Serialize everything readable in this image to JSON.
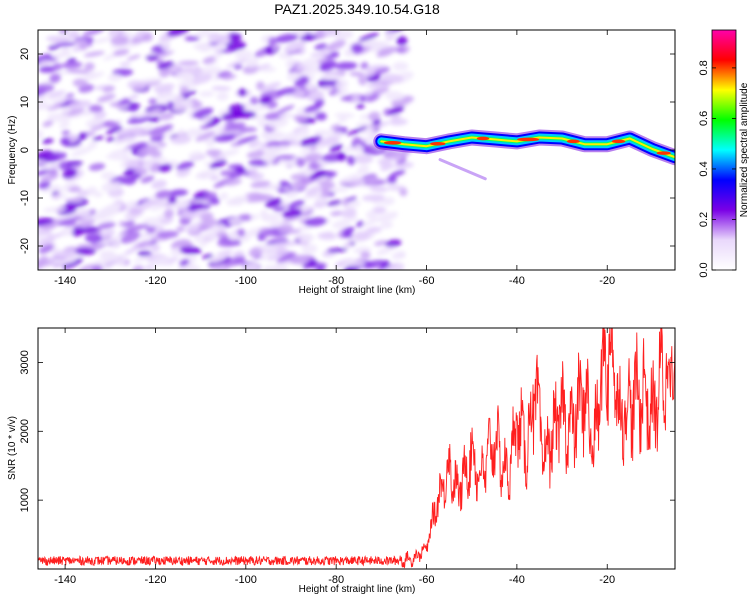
{
  "title": "PAZ1.2025.349.10.54.G18",
  "chart_data": [
    {
      "type": "heatmap",
      "xlabel": "Height of straight line (km)",
      "ylabel": "Frequency (Hz)",
      "xlim": [
        -146,
        -5
      ],
      "ylim": [
        -25,
        25
      ],
      "xticks": [
        -140,
        -120,
        -100,
        -80,
        -60,
        -40,
        -20
      ],
      "yticks": [
        -20,
        -10,
        0,
        10,
        20
      ],
      "noise_region_x": [
        -146,
        -65
      ],
      "signal_track": {
        "x": [
          -70,
          -65,
          -60,
          -55,
          -50,
          -45,
          -40,
          -35,
          -30,
          -25,
          -20,
          -15,
          -10,
          -5
        ],
        "freq": [
          1.8,
          1.2,
          0.8,
          1.8,
          2.6,
          2.2,
          1.8,
          2.6,
          2.4,
          1.2,
          1.2,
          2.4,
          0.2,
          -1.5
        ]
      },
      "colorbar": {
        "label": "Normalized spectral amplitude",
        "range": [
          0.0,
          0.95
        ],
        "ticks": [
          "0.0",
          "0.2",
          "0.4",
          "0.6",
          "0.8"
        ],
        "colors": [
          "#ffffff",
          "#e9d8fb",
          "#7a00e6",
          "#0000ff",
          "#00ffff",
          "#00ff00",
          "#ffff00",
          "#ff0000",
          "#ff00aa"
        ]
      }
    },
    {
      "type": "line",
      "xlabel": "Height of straight line (km)",
      "ylabel": "SNR (10 * v/v)",
      "xlim": [
        -146,
        -5
      ],
      "ylim": [
        0,
        3500
      ],
      "xticks": [
        -140,
        -120,
        -100,
        -80,
        -60,
        -40,
        -20
      ],
      "yticks": [
        1000,
        2000,
        3000
      ],
      "color": "#ff1f1f",
      "noise_floor": 120,
      "anchors": {
        "x": [
          -146,
          -66,
          -63,
          -60,
          -58,
          -55,
          -53,
          -50,
          -48,
          -45,
          -42,
          -40,
          -38,
          -36,
          -34,
          -30,
          -28,
          -25,
          -23,
          -21,
          -19,
          -17,
          -15,
          -12,
          -10,
          -8,
          -5
        ],
        "y": [
          120,
          120,
          150,
          300,
          900,
          1500,
          1100,
          1700,
          1300,
          1900,
          1300,
          2200,
          1700,
          2600,
          1600,
          2300,
          2000,
          2600,
          1700,
          3000,
          3200,
          2200,
          2400,
          2600,
          2200,
          2800,
          3000
        ]
      }
    }
  ]
}
